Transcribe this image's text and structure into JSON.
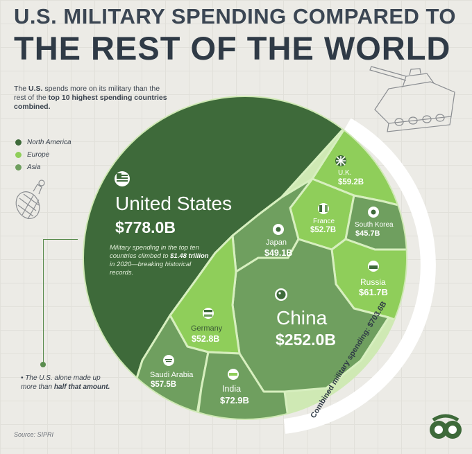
{
  "header": {
    "title_line1": "U.S. MILITARY SPENDING COMPARED TO",
    "title_line2": "THE REST OF THE WORLD"
  },
  "subtitle": {
    "part1": "The ",
    "bold1": "U.S.",
    "part2": " spends more on its military than the rest of the ",
    "bold2": "top 10 highest spending countries combined."
  },
  "legend": [
    {
      "label": "North America",
      "color": "#3e6a3a"
    },
    {
      "label": "Europe",
      "color": "#8fce5a"
    },
    {
      "label": "Asia",
      "color": "#6f9f5f"
    }
  ],
  "us_box": {
    "name": "United States",
    "value": "$778.0B",
    "note_part1": "Military spending in the top ten countries climbed to ",
    "note_bold": "$1.48 trillion",
    "note_part2": " in 2020—breaking historical records."
  },
  "us_alone_note": {
    "part1": "The U.S. alone made up more than ",
    "bold": "half that amount."
  },
  "combined_label": "Combined military spending: $703.6B",
  "source": "Source: SIPRI",
  "chart_data": {
    "type": "voronoi-treemap",
    "title": "U.S. MILITARY SPENDING COMPARED TO THE REST OF THE WORLD",
    "units": "USD billions (2020)",
    "categories": [
      {
        "country": "United States",
        "value": 778.0,
        "label": "$778.0B",
        "region": "North America",
        "color": "#3e6a3a"
      },
      {
        "country": "China",
        "value": 252.0,
        "label": "$252.0B",
        "region": "Asia",
        "color": "#6f9f5f"
      },
      {
        "country": "India",
        "value": 72.9,
        "label": "$72.9B",
        "region": "Asia",
        "color": "#6f9f5f"
      },
      {
        "country": "Russia",
        "value": 61.7,
        "label": "$61.7B",
        "region": "Europe",
        "color": "#8fce5a"
      },
      {
        "country": "U.K.",
        "value": 59.2,
        "label": "$59.2B",
        "region": "Europe",
        "color": "#8fce5a"
      },
      {
        "country": "Saudi Arabia",
        "value": 57.5,
        "label": "$57.5B",
        "region": "Asia",
        "color": "#6f9f5f"
      },
      {
        "country": "Germany",
        "value": 52.8,
        "label": "$52.8B",
        "region": "Europe",
        "color": "#8fce5a"
      },
      {
        "country": "France",
        "value": 52.7,
        "label": "$52.7B",
        "region": "Europe",
        "color": "#8fce5a"
      },
      {
        "country": "Japan",
        "value": 49.1,
        "label": "$49.1B",
        "region": "Asia",
        "color": "#6f9f5f"
      },
      {
        "country": "South Korea",
        "value": 45.7,
        "label": "$45.7B",
        "region": "Asia",
        "color": "#6f9f5f"
      }
    ],
    "combined_rest": 703.6,
    "top_ten_total": "$1.48 trillion"
  }
}
